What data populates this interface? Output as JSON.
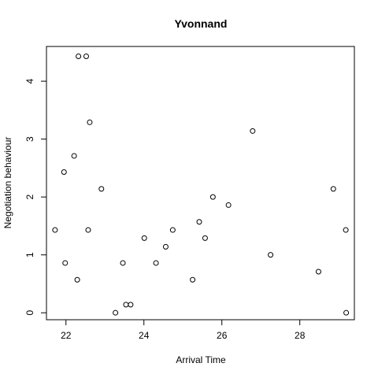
{
  "chart_data": {
    "type": "scatter",
    "title": "Yvonnand",
    "xlabel": "Arrival Time",
    "ylabel": "Negotiation behaviour",
    "xlim": [
      21.5,
      29.4
    ],
    "ylim": [
      -0.12,
      4.6
    ],
    "xticks": [
      22,
      24,
      26,
      28
    ],
    "yticks": [
      0,
      1,
      2,
      3,
      4
    ],
    "grid": false,
    "legend": "none",
    "marker": "open-circle",
    "colors": {
      "points": "#000000",
      "axes": "#000000",
      "background": "#ffffff"
    },
    "points": [
      {
        "x": 21.72,
        "y": 1.43
      },
      {
        "x": 21.95,
        "y": 2.43
      },
      {
        "x": 21.98,
        "y": 0.86
      },
      {
        "x": 22.21,
        "y": 2.71
      },
      {
        "x": 22.29,
        "y": 0.57
      },
      {
        "x": 22.32,
        "y": 4.43
      },
      {
        "x": 22.52,
        "y": 4.43
      },
      {
        "x": 22.57,
        "y": 1.43
      },
      {
        "x": 22.61,
        "y": 3.29
      },
      {
        "x": 22.91,
        "y": 2.14
      },
      {
        "x": 23.27,
        "y": 0.0
      },
      {
        "x": 23.46,
        "y": 0.86
      },
      {
        "x": 23.54,
        "y": 0.14
      },
      {
        "x": 23.66,
        "y": 0.14
      },
      {
        "x": 24.01,
        "y": 1.29
      },
      {
        "x": 24.31,
        "y": 0.86
      },
      {
        "x": 24.56,
        "y": 1.14
      },
      {
        "x": 24.74,
        "y": 1.43
      },
      {
        "x": 25.25,
        "y": 0.57
      },
      {
        "x": 25.42,
        "y": 1.57
      },
      {
        "x": 25.57,
        "y": 1.29
      },
      {
        "x": 25.77,
        "y": 2.0
      },
      {
        "x": 26.17,
        "y": 1.86
      },
      {
        "x": 26.79,
        "y": 3.14
      },
      {
        "x": 27.25,
        "y": 1.0
      },
      {
        "x": 28.48,
        "y": 0.71
      },
      {
        "x": 28.86,
        "y": 2.14
      },
      {
        "x": 29.18,
        "y": 1.43
      },
      {
        "x": 29.19,
        "y": 0.0
      }
    ]
  }
}
